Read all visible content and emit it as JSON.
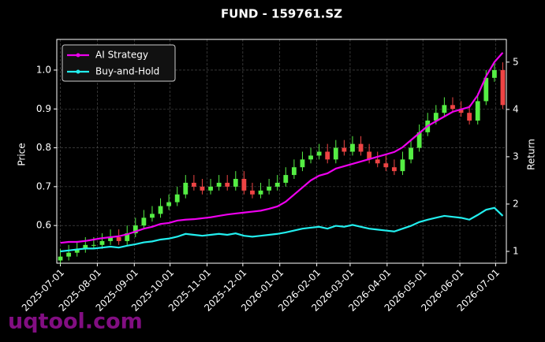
{
  "chart_data": {
    "type": "candlestick",
    "title": "FUND - 159761.SZ",
    "ylabel": "Price",
    "y2label": "Return",
    "watermark": "uqtool.com",
    "x": [
      "2025-07-01",
      "2025-07-08",
      "2025-07-15",
      "2025-07-22",
      "2025-07-29",
      "2025-08-05",
      "2025-08-12",
      "2025-08-19",
      "2025-08-26",
      "2025-09-02",
      "2025-09-09",
      "2025-09-16",
      "2025-09-23",
      "2025-09-30",
      "2025-10-07",
      "2025-10-14",
      "2025-10-21",
      "2025-10-28",
      "2025-11-04",
      "2025-11-11",
      "2025-11-18",
      "2025-11-25",
      "2025-12-02",
      "2025-12-09",
      "2025-12-16",
      "2025-12-23",
      "2025-12-30",
      "2026-01-06",
      "2026-01-13",
      "2026-01-20",
      "2026-01-27",
      "2026-02-03",
      "2026-02-10",
      "2026-02-17",
      "2026-02-24",
      "2026-03-03",
      "2026-03-10",
      "2026-03-17",
      "2026-03-24",
      "2026-03-31",
      "2026-04-07",
      "2026-04-14",
      "2026-04-21",
      "2026-04-28",
      "2026-05-05",
      "2026-05-12",
      "2026-05-19",
      "2026-05-26",
      "2026-06-02",
      "2026-06-09",
      "2026-06-16",
      "2026-06-23",
      "2026-06-30",
      "2026-07-07"
    ],
    "open": [
      0.51,
      0.52,
      0.53,
      0.54,
      0.55,
      0.55,
      0.56,
      0.57,
      0.56,
      0.58,
      0.6,
      0.62,
      0.63,
      0.65,
      0.66,
      0.68,
      0.71,
      0.7,
      0.69,
      0.7,
      0.71,
      0.7,
      0.72,
      0.69,
      0.68,
      0.69,
      0.7,
      0.71,
      0.73,
      0.75,
      0.77,
      0.78,
      0.79,
      0.77,
      0.8,
      0.79,
      0.81,
      0.79,
      0.77,
      0.76,
      0.75,
      0.74,
      0.77,
      0.8,
      0.84,
      0.87,
      0.89,
      0.91,
      0.9,
      0.89,
      0.87,
      0.92,
      0.98,
      1.0
    ],
    "high": [
      0.54,
      0.55,
      0.56,
      0.57,
      0.57,
      0.58,
      0.59,
      0.59,
      0.6,
      0.62,
      0.64,
      0.65,
      0.67,
      0.68,
      0.7,
      0.73,
      0.73,
      0.72,
      0.72,
      0.73,
      0.73,
      0.74,
      0.74,
      0.71,
      0.71,
      0.72,
      0.73,
      0.75,
      0.77,
      0.79,
      0.8,
      0.81,
      0.81,
      0.82,
      0.82,
      0.83,
      0.83,
      0.81,
      0.79,
      0.78,
      0.77,
      0.79,
      0.82,
      0.86,
      0.89,
      0.91,
      0.93,
      0.93,
      0.92,
      0.91,
      0.94,
      1.0,
      1.02,
      1.02
    ],
    "low": [
      0.5,
      0.51,
      0.52,
      0.53,
      0.54,
      0.54,
      0.55,
      0.55,
      0.55,
      0.57,
      0.59,
      0.61,
      0.62,
      0.64,
      0.65,
      0.67,
      0.69,
      0.68,
      0.68,
      0.69,
      0.69,
      0.69,
      0.68,
      0.67,
      0.67,
      0.68,
      0.69,
      0.7,
      0.72,
      0.74,
      0.76,
      0.77,
      0.76,
      0.76,
      0.78,
      0.78,
      0.78,
      0.76,
      0.75,
      0.74,
      0.73,
      0.73,
      0.76,
      0.79,
      0.83,
      0.86,
      0.88,
      0.89,
      0.88,
      0.86,
      0.86,
      0.91,
      0.97,
      0.9
    ],
    "close": [
      0.52,
      0.53,
      0.54,
      0.55,
      0.55,
      0.56,
      0.57,
      0.56,
      0.58,
      0.6,
      0.62,
      0.63,
      0.65,
      0.66,
      0.68,
      0.71,
      0.7,
      0.69,
      0.7,
      0.71,
      0.7,
      0.72,
      0.69,
      0.68,
      0.69,
      0.7,
      0.71,
      0.73,
      0.75,
      0.77,
      0.78,
      0.79,
      0.77,
      0.8,
      0.79,
      0.81,
      0.79,
      0.77,
      0.76,
      0.75,
      0.74,
      0.77,
      0.8,
      0.84,
      0.87,
      0.89,
      0.91,
      0.9,
      0.89,
      0.87,
      0.92,
      0.98,
      1.0,
      0.91
    ],
    "up_color": "#55ee44",
    "down_color": "#ee4444",
    "series": [
      {
        "name": "AI Strategy",
        "color": "#ee00ee",
        "axis": "y2",
        "values": [
          1.18,
          1.2,
          1.2,
          1.22,
          1.25,
          1.28,
          1.3,
          1.32,
          1.36,
          1.42,
          1.48,
          1.52,
          1.58,
          1.6,
          1.65,
          1.67,
          1.68,
          1.7,
          1.72,
          1.75,
          1.78,
          1.8,
          1.82,
          1.84,
          1.86,
          1.9,
          1.95,
          2.05,
          2.2,
          2.35,
          2.5,
          2.6,
          2.65,
          2.75,
          2.8,
          2.85,
          2.9,
          2.95,
          3.0,
          3.05,
          3.1,
          3.2,
          3.35,
          3.5,
          3.65,
          3.75,
          3.85,
          3.95,
          4.0,
          4.05,
          4.3,
          4.7,
          5.0,
          5.2
        ]
      },
      {
        "name": "Buy-and-Hold",
        "color": "#22eeee",
        "axis": "y2",
        "values": [
          1.0,
          1.02,
          1.04,
          1.06,
          1.06,
          1.08,
          1.1,
          1.08,
          1.12,
          1.15,
          1.19,
          1.21,
          1.25,
          1.27,
          1.31,
          1.37,
          1.35,
          1.33,
          1.35,
          1.37,
          1.35,
          1.38,
          1.33,
          1.31,
          1.33,
          1.35,
          1.37,
          1.4,
          1.44,
          1.48,
          1.5,
          1.52,
          1.48,
          1.54,
          1.52,
          1.56,
          1.52,
          1.48,
          1.46,
          1.44,
          1.42,
          1.48,
          1.54,
          1.62,
          1.67,
          1.71,
          1.75,
          1.73,
          1.71,
          1.67,
          1.77,
          1.88,
          1.92,
          1.75
        ]
      }
    ],
    "xlim": [
      "2025-06-28",
      "2026-07-10"
    ],
    "xticks": [
      "2025-07-01",
      "2025-08-01",
      "2025-09-01",
      "2025-10-01",
      "2025-11-01",
      "2025-12-01",
      "2026-01-01",
      "2026-02-01",
      "2026-03-01",
      "2026-04-01",
      "2026-05-01",
      "2026-06-01",
      "2026-07-01"
    ],
    "ylim": [
      0.503,
      1.079
    ],
    "yticks": [
      0.6,
      0.7,
      0.8,
      0.9,
      {
        "value": 1,
        "label": "1.0"
      }
    ],
    "y2lim": [
      0.75,
      5.48
    ],
    "y2ticks": [
      1,
      2,
      3,
      4,
      5
    ],
    "grid": true,
    "legend": "upper left"
  }
}
